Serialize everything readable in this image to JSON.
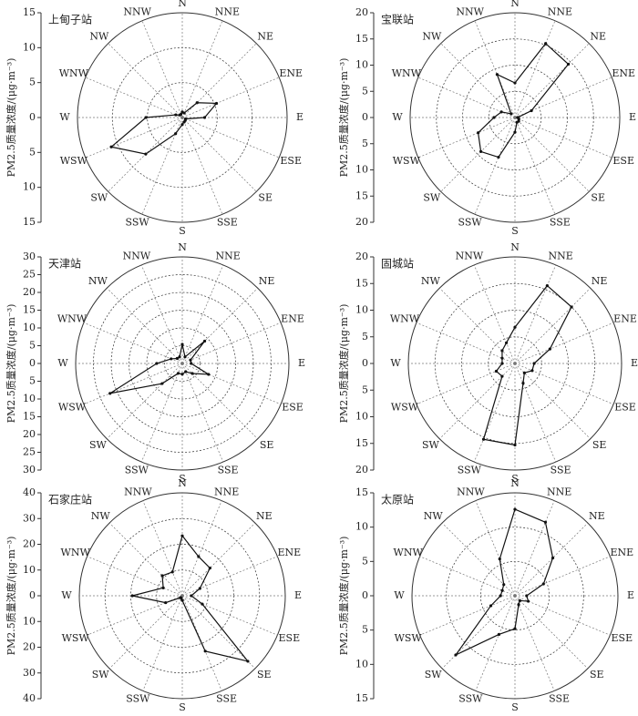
{
  "chart_data": [
    {
      "type": "radar",
      "title": "上甸子站",
      "ylabel": "PM2.5质量浓度/(μg·m⁻³)",
      "categories": [
        "N",
        "NNE",
        "NE",
        "ENE",
        "E",
        "ESE",
        "SE",
        "SSE",
        "S",
        "SSW",
        "SW",
        "WSW",
        "W",
        "WNW",
        "NW",
        "NNW"
      ],
      "values": [
        0.8,
        0.7,
        3,
        5.3,
        3.2,
        0.5,
        0.6,
        0.7,
        1,
        2.5,
        7.4,
        11,
        5.2,
        1,
        0.5,
        0.5
      ],
      "ylim": [
        0,
        15
      ],
      "yticks": [
        0,
        5,
        10,
        15
      ],
      "color": "#111111"
    },
    {
      "type": "radar",
      "title": "宝联站",
      "ylabel": "PM2.5质量浓度/(μg·m⁻³)",
      "categories": [
        "N",
        "NNE",
        "NE",
        "ENE",
        "E",
        "ESE",
        "SE",
        "SSE",
        "S",
        "SSW",
        "SW",
        "WSW",
        "W",
        "WNW",
        "NW",
        "NNW"
      ],
      "values": [
        6.6,
        15.3,
        14.4,
        3.4,
        0.5,
        0.8,
        1,
        1,
        2.8,
        8.2,
        9.2,
        7.6,
        4,
        2.8,
        1,
        8.9
      ],
      "ylim": [
        0,
        20
      ],
      "yticks": [
        0,
        5,
        10,
        15,
        20
      ],
      "color": "#111111"
    },
    {
      "type": "radar",
      "title": "天津站",
      "ylabel": "PM2.5质量浓度/(μg·m⁻³)",
      "categories": [
        "N",
        "NNE",
        "NE",
        "ENE",
        "E",
        "ESE",
        "SE",
        "SSE",
        "S",
        "SSW",
        "SW",
        "WSW",
        "W",
        "WNW",
        "NW",
        "NNW"
      ],
      "values": [
        5.4,
        2,
        8.9,
        2.5,
        2.5,
        8,
        4,
        2.5,
        3,
        3,
        8,
        22,
        7.2,
        3.4,
        2,
        2
      ],
      "ylim": [
        0,
        30
      ],
      "yticks": [
        0,
        5,
        10,
        15,
        20,
        25,
        30
      ],
      "color": "#111111"
    },
    {
      "type": "radar",
      "title": "固城站",
      "ylabel": "PM2.5质量浓度/(μg·m⁻³)",
      "categories": [
        "N",
        "NNE",
        "NE",
        "ENE",
        "E",
        "ESE",
        "SE",
        "SSE",
        "S",
        "SSW",
        "SW",
        "WSW",
        "W",
        "WNW",
        "NW",
        "NNW"
      ],
      "values": [
        6.8,
        15.8,
        15,
        7.1,
        3.6,
        3.5,
        2.5,
        4,
        15.3,
        15.4,
        3.4,
        3.8,
        2.4,
        2.6,
        3.4,
        4.2
      ],
      "ylim": [
        0,
        20
      ],
      "yticks": [
        0,
        5,
        10,
        15,
        20
      ],
      "color": "#111111"
    },
    {
      "type": "radar",
      "title": "石家庄站",
      "ylabel": "PM2.5质量浓度/(μg·m⁻³)",
      "categories": [
        "N",
        "NNE",
        "NE",
        "ENE",
        "E",
        "ESE",
        "SE",
        "SSE",
        "S",
        "SSW",
        "SW",
        "WSW",
        "W",
        "WNW",
        "NW",
        "NNW"
      ],
      "values": [
        23.3,
        16.5,
        15.2,
        7.4,
        3.5,
        8.4,
        36,
        23.3,
        1.8,
        1,
        1,
        7,
        19.4,
        8,
        11,
        10
      ],
      "ylim": [
        0,
        40
      ],
      "yticks": [
        0,
        10,
        20,
        30,
        40
      ],
      "color": "#111111"
    },
    {
      "type": "radar",
      "title": "太原站",
      "ylabel": "PM2.5质量浓度/(μg·m⁻³)",
      "categories": [
        "N",
        "NNE",
        "NE",
        "ENE",
        "E",
        "ESE",
        "SE",
        "SSE",
        "S",
        "SSW",
        "SW",
        "WSW",
        "W",
        "WNW",
        "NW",
        "NNW"
      ],
      "values": [
        12.6,
        11.6,
        7.8,
        4.5,
        1.7,
        2.1,
        1,
        1.4,
        4.8,
        6.1,
        12.2,
        3.8,
        2.1,
        2,
        2.3,
        5.8
      ],
      "ylim": [
        0,
        15
      ],
      "yticks": [
        0,
        5,
        10,
        15
      ],
      "color": "#111111"
    }
  ]
}
